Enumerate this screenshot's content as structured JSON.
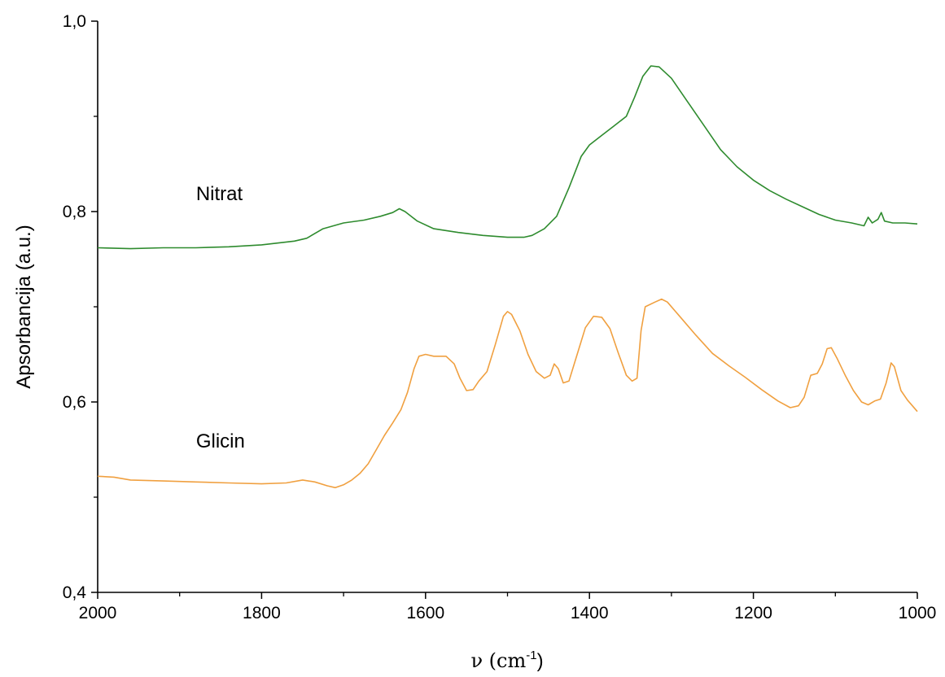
{
  "chart_data": {
    "type": "line",
    "xlabel_main": "ν (cm",
    "xlabel_sup": "-1",
    "xlabel_tail": ")",
    "ylabel": "Apsorbancija (a.u.)",
    "xlim": [
      2000,
      1000
    ],
    "ylim": [
      0.4,
      1.0
    ],
    "x_ticks": [
      2000,
      1800,
      1600,
      1400,
      1200,
      1000
    ],
    "x_tick_labels": [
      "2000",
      "1800",
      "1600",
      "1400",
      "1200",
      "1000"
    ],
    "y_ticks": [
      0.4,
      0.6,
      0.8,
      1.0
    ],
    "y_tick_labels": [
      "0,4",
      "0,6",
      "0,8",
      "1,0"
    ],
    "grid": false,
    "series": [
      {
        "name": "Nitrat",
        "label_position": [
          1880,
          0.812
        ],
        "color": "#2e8b2e",
        "points": [
          [
            2000,
            0.762
          ],
          [
            1960,
            0.761
          ],
          [
            1920,
            0.762
          ],
          [
            1880,
            0.762
          ],
          [
            1840,
            0.763
          ],
          [
            1800,
            0.765
          ],
          [
            1760,
            0.769
          ],
          [
            1745,
            0.772
          ],
          [
            1725,
            0.782
          ],
          [
            1700,
            0.788
          ],
          [
            1675,
            0.791
          ],
          [
            1655,
            0.795
          ],
          [
            1640,
            0.799
          ],
          [
            1632,
            0.803
          ],
          [
            1625,
            0.8
          ],
          [
            1610,
            0.79
          ],
          [
            1590,
            0.782
          ],
          [
            1560,
            0.778
          ],
          [
            1530,
            0.775
          ],
          [
            1500,
            0.773
          ],
          [
            1480,
            0.773
          ],
          [
            1470,
            0.775
          ],
          [
            1455,
            0.782
          ],
          [
            1440,
            0.795
          ],
          [
            1425,
            0.825
          ],
          [
            1410,
            0.858
          ],
          [
            1400,
            0.87
          ],
          [
            1385,
            0.88
          ],
          [
            1370,
            0.89
          ],
          [
            1355,
            0.9
          ],
          [
            1345,
            0.92
          ],
          [
            1335,
            0.942
          ],
          [
            1325,
            0.953
          ],
          [
            1315,
            0.952
          ],
          [
            1300,
            0.94
          ],
          [
            1280,
            0.915
          ],
          [
            1260,
            0.89
          ],
          [
            1240,
            0.865
          ],
          [
            1220,
            0.847
          ],
          [
            1200,
            0.833
          ],
          [
            1180,
            0.822
          ],
          [
            1160,
            0.813
          ],
          [
            1140,
            0.805
          ],
          [
            1120,
            0.797
          ],
          [
            1100,
            0.791
          ],
          [
            1080,
            0.788
          ],
          [
            1065,
            0.785
          ],
          [
            1060,
            0.794
          ],
          [
            1055,
            0.788
          ],
          [
            1048,
            0.792
          ],
          [
            1044,
            0.799
          ],
          [
            1040,
            0.79
          ],
          [
            1030,
            0.788
          ],
          [
            1015,
            0.788
          ],
          [
            1000,
            0.787
          ]
        ]
      },
      {
        "name": "Glicin",
        "label_position": [
          1880,
          0.552
        ],
        "color": "#f0a040",
        "points": [
          [
            2000,
            0.522
          ],
          [
            1980,
            0.521
          ],
          [
            1960,
            0.518
          ],
          [
            1920,
            0.517
          ],
          [
            1880,
            0.516
          ],
          [
            1840,
            0.515
          ],
          [
            1800,
            0.514
          ],
          [
            1770,
            0.515
          ],
          [
            1750,
            0.518
          ],
          [
            1735,
            0.516
          ],
          [
            1720,
            0.512
          ],
          [
            1710,
            0.51
          ],
          [
            1700,
            0.513
          ],
          [
            1690,
            0.518
          ],
          [
            1680,
            0.525
          ],
          [
            1670,
            0.535
          ],
          [
            1660,
            0.55
          ],
          [
            1650,
            0.565
          ],
          [
            1640,
            0.578
          ],
          [
            1630,
            0.592
          ],
          [
            1622,
            0.61
          ],
          [
            1614,
            0.635
          ],
          [
            1608,
            0.648
          ],
          [
            1600,
            0.65
          ],
          [
            1590,
            0.648
          ],
          [
            1575,
            0.648
          ],
          [
            1565,
            0.64
          ],
          [
            1558,
            0.625
          ],
          [
            1550,
            0.612
          ],
          [
            1542,
            0.613
          ],
          [
            1535,
            0.622
          ],
          [
            1525,
            0.632
          ],
          [
            1515,
            0.66
          ],
          [
            1505,
            0.69
          ],
          [
            1500,
            0.695
          ],
          [
            1495,
            0.692
          ],
          [
            1485,
            0.675
          ],
          [
            1475,
            0.65
          ],
          [
            1465,
            0.632
          ],
          [
            1455,
            0.625
          ],
          [
            1448,
            0.628
          ],
          [
            1443,
            0.64
          ],
          [
            1438,
            0.635
          ],
          [
            1432,
            0.62
          ],
          [
            1425,
            0.622
          ],
          [
            1415,
            0.65
          ],
          [
            1405,
            0.678
          ],
          [
            1395,
            0.69
          ],
          [
            1385,
            0.689
          ],
          [
            1375,
            0.677
          ],
          [
            1365,
            0.652
          ],
          [
            1355,
            0.628
          ],
          [
            1348,
            0.622
          ],
          [
            1342,
            0.625
          ],
          [
            1337,
            0.675
          ],
          [
            1332,
            0.7
          ],
          [
            1320,
            0.705
          ],
          [
            1312,
            0.708
          ],
          [
            1305,
            0.705
          ],
          [
            1290,
            0.69
          ],
          [
            1270,
            0.67
          ],
          [
            1250,
            0.651
          ],
          [
            1230,
            0.638
          ],
          [
            1210,
            0.626
          ],
          [
            1190,
            0.613
          ],
          [
            1170,
            0.601
          ],
          [
            1155,
            0.594
          ],
          [
            1145,
            0.596
          ],
          [
            1138,
            0.605
          ],
          [
            1130,
            0.628
          ],
          [
            1122,
            0.63
          ],
          [
            1116,
            0.64
          ],
          [
            1110,
            0.656
          ],
          [
            1105,
            0.657
          ],
          [
            1098,
            0.646
          ],
          [
            1088,
            0.628
          ],
          [
            1078,
            0.612
          ],
          [
            1068,
            0.6
          ],
          [
            1060,
            0.597
          ],
          [
            1052,
            0.601
          ],
          [
            1045,
            0.603
          ],
          [
            1038,
            0.62
          ],
          [
            1032,
            0.641
          ],
          [
            1028,
            0.637
          ],
          [
            1020,
            0.612
          ],
          [
            1012,
            0.602
          ],
          [
            1000,
            0.59
          ]
        ]
      }
    ]
  }
}
